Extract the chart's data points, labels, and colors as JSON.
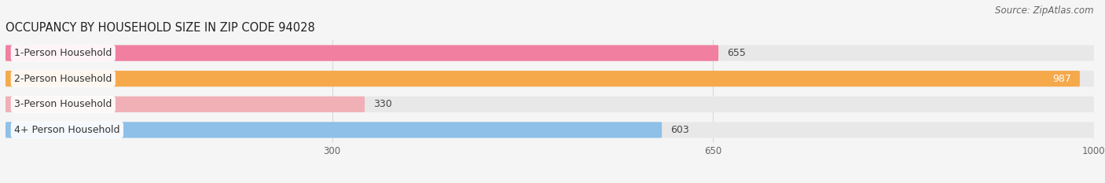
{
  "title": "OCCUPANCY BY HOUSEHOLD SIZE IN ZIP CODE 94028",
  "source": "Source: ZipAtlas.com",
  "categories": [
    "1-Person Household",
    "2-Person Household",
    "3-Person Household",
    "4+ Person Household"
  ],
  "values": [
    655,
    987,
    330,
    603
  ],
  "bar_colors": [
    "#f07fa0",
    "#f5a94a",
    "#f0b0b5",
    "#8ec0e8"
  ],
  "bar_bg_color": "#e8e8e8",
  "xlim": [
    0,
    1000
  ],
  "xticks": [
    300,
    650,
    1000
  ],
  "figsize": [
    14.06,
    2.33
  ],
  "dpi": 100,
  "title_fontsize": 10.5,
  "source_fontsize": 8.5,
  "label_fontsize": 9,
  "value_fontsize": 9,
  "tick_fontsize": 8.5,
  "bar_height": 0.62,
  "bg_color": "#f5f5f5",
  "grid_color": "#d8d8d8"
}
